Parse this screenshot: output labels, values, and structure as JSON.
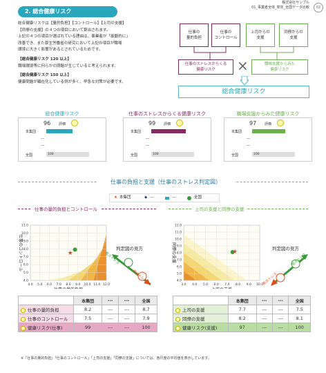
{
  "header": {
    "section_label": "2. 総合健康リスク",
    "company": "株式会社サンプル",
    "dept_line": "01_事業者全体_単年_全国データ比較",
    "page": "02"
  },
  "intro": {
    "para": [
      "総合健康リスクは【量的負担】【コントロール】【上司の支援】",
      "【同僚の支援】の４つの項目において算出されます。",
      "上記の４つの項目が選ばれている理由は、事業者が「能動的に」",
      "改善でき、また厚生労働省の研究において上記の項目が職場",
      "環境に大きく影響があるとされているためです。"
    ],
    "h1": "【総合健康リスク 120 以上】",
    "d1": "職場環境等に何らかの問題が生じていると考えられます。",
    "h2": "【総合健康リスク 150 以上】",
    "d2": "健康問題が顕在化している例が多く、早急な対策が必要です。"
  },
  "flow": {
    "b1": "仕事の\n量的負担",
    "b2": "仕事の\nコントロール",
    "b3": "上司からの\n支援",
    "b4": "同僚からの\n支援",
    "r1": "仕事のストレスからくる\n健康リスク",
    "r2": "職場支援からみた\n健康リスク",
    "times": "×",
    "total": "総合健康リスク"
  },
  "gauges": [
    {
      "title": "総合健康リスク",
      "value": "96",
      "label": "評価",
      "row1": "本集団",
      "dash1": "---",
      "dash2": "---",
      "row_all": "全国",
      "all_val": "100",
      "fill": 0.48,
      "color": "#2aa6bd",
      "tcolor": "#2aa6bd"
    },
    {
      "title": "仕事のストレスからくる健康リスク",
      "value": "99",
      "label": "評価",
      "row1": "本集団",
      "dash1": "---",
      "dash2": "---",
      "row_all": "全国",
      "all_val": "100",
      "fill": 0.62,
      "color": "#8a2a63",
      "tcolor": "#8a2a63"
    },
    {
      "title": "職場支援からみた健康リスク",
      "value": "97",
      "label": "評価",
      "row1": "本集団",
      "dash1": "---",
      "dash2": "---",
      "row_all": "全国",
      "all_val": "100",
      "fill": 0.6,
      "color": "#6ab04c",
      "tcolor": "#6ab04c"
    }
  ],
  "judge": {
    "title": "仕事の負担と支援（仕事のストレス判定図）",
    "legend": [
      "本集団",
      "---",
      "---",
      "全国"
    ],
    "left": {
      "subtitle": "仕事の量的負担とコントロール",
      "xlabel": "仕事の量的負担",
      "ylabel": "仕事のコントロール",
      "xticks": [
        "4.0",
        "5.0",
        "6.0",
        "7.0",
        "8.0",
        "9.0",
        "10.0",
        "11.0",
        "12.0"
      ],
      "yticks": [
        "11.0",
        "10.0",
        "9.0",
        "8.0",
        "7.0",
        "6.0",
        "5.0",
        "4.0"
      ],
      "xmin": 4,
      "xmax": 12,
      "ymin": 4,
      "ymax": 11,
      "group": {
        "x": 8.2,
        "y": 7.5
      },
      "national": {
        "x": 8.7,
        "y": 7.9
      }
    },
    "right": {
      "subtitle": "上司の支援と同僚の支援",
      "xlabel": "上司の支援",
      "ylabel": "同僚の支援",
      "xticks": [
        "3.0",
        "4.0",
        "5.0",
        "6.0",
        "7.0",
        "8.0",
        "9.0",
        "10.0"
      ],
      "yticks": [
        "12.0",
        "11.0",
        "10.0",
        "9.0",
        "8.0",
        "7.0",
        "6.0",
        "5.0",
        "4.0"
      ],
      "xmin": 3,
      "xmax": 10,
      "ymin": 4,
      "ymax": 12,
      "group": {
        "x": 7.7,
        "y": 8.2
      },
      "national": {
        "x": 7.5,
        "y": 8.1
      }
    },
    "guide": "判定図の見方",
    "low": "低ストレス",
    "high": "高ストレス",
    "low2": "低ストレス",
    "high2": "高ストレス"
  },
  "table_left": {
    "headers": [
      "",
      "本集団",
      "---",
      "---",
      "全国"
    ],
    "rows": [
      {
        "label": "仕事の量的負担",
        "v": [
          "8.2",
          "---",
          "---",
          "8.7"
        ]
      },
      {
        "label": "仕事のコントロール",
        "v": [
          "7.5",
          "---",
          "---",
          "7.9"
        ]
      },
      {
        "label": "健康リスク(仕事)",
        "v": [
          "99",
          "---",
          "---",
          "100"
        ]
      }
    ]
  },
  "table_right": {
    "headers": [
      "",
      "本集団",
      "---",
      "---",
      "全国"
    ],
    "rows": [
      {
        "label": "上司の支援",
        "v": [
          "7.7",
          "---",
          "---",
          "7.5"
        ]
      },
      {
        "label": "同僚の支援",
        "v": [
          "8.2",
          "---",
          "---",
          "8.1"
        ]
      },
      {
        "label": "健康リスク(支援)",
        "v": [
          "97",
          "---",
          "---",
          "100"
        ]
      }
    ]
  },
  "footnote": "※「仕事の量的負担」「仕事のコントロール」「上司の支援」「同僚の支援」については、各尺度の平均値を表示しています。",
  "colors": {
    "accent": "#2aa6bd",
    "maroon": "#8a2a63",
    "green": "#6ab04c"
  }
}
